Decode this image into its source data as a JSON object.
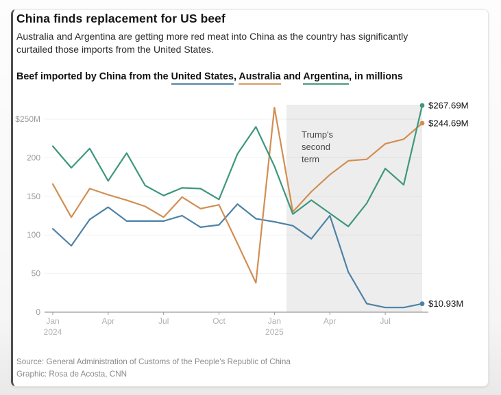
{
  "page": {
    "headline": "China finds replacement for US beef",
    "subhead": "Australia and Argentina are getting more red meat into China as the country has significantly curtailed those imports from the United States.",
    "chart_title": {
      "prefix": "Beef imported by China from the ",
      "series_us": "United States",
      "sep1": ", ",
      "series_au": "Australia",
      "sep2": " and ",
      "series_ar": "Argentina",
      "suffix": ", in millions"
    },
    "source_line1": "Source: General Administration of Customs of the People's Republic of China",
    "source_line2": "Graphic: Rosa de Acosta, CNN"
  },
  "chart_data": {
    "type": "line",
    "title": "Beef imported by China from the United States, Australia and Argentina, in millions",
    "unit": "USD millions",
    "ylim": [
      0,
      280
    ],
    "grid": "horizontal",
    "x": [
      "Jan 2024",
      "Feb 2024",
      "Mar 2024",
      "Apr 2024",
      "May 2024",
      "Jun 2024",
      "Jul 2024",
      "Aug 2024",
      "Sep 2024",
      "Oct 2024",
      "Nov 2024",
      "Dec 2024",
      "Jan 2025",
      "Feb 2025",
      "Mar 2025",
      "Apr 2025",
      "May 2025",
      "Jun 2025",
      "Jul 2025",
      "Aug 2025",
      "Sep 2025"
    ],
    "x_ticks": [
      {
        "index": 0,
        "line1": "Jan",
        "line2": "2024"
      },
      {
        "index": 3,
        "line1": "Apr"
      },
      {
        "index": 6,
        "line1": "Jul"
      },
      {
        "index": 9,
        "line1": "Oct"
      },
      {
        "index": 12,
        "line1": "Jan",
        "line2": "2025"
      },
      {
        "index": 15,
        "line1": "Apr"
      },
      {
        "index": 18,
        "line1": "Jul"
      }
    ],
    "y_ticks": [
      {
        "value": 250,
        "label": "$250M"
      },
      {
        "value": 200,
        "label": "200"
      },
      {
        "value": 150,
        "label": "150"
      },
      {
        "value": 100,
        "label": "100"
      },
      {
        "value": 50,
        "label": "50"
      },
      {
        "value": 0,
        "label": "0"
      }
    ],
    "series": [
      {
        "name": "United States",
        "color": "#4d82a6",
        "end_label": "$10.93M",
        "values": [
          108,
          86,
          120,
          136,
          118,
          118,
          118,
          125,
          110,
          113,
          140,
          121,
          117,
          112,
          95,
          125,
          52,
          11,
          6,
          6,
          10.93
        ]
      },
      {
        "name": "Australia",
        "color": "#d28e52",
        "end_label": "$244.69M",
        "values": [
          166,
          123,
          160,
          152,
          145,
          137,
          123,
          149,
          134,
          139,
          89,
          38,
          265,
          130,
          156,
          178,
          196,
          198,
          218,
          224,
          244.69
        ]
      },
      {
        "name": "Argentina",
        "color": "#3d977d",
        "end_label": "$267.69M",
        "values": [
          215,
          187,
          212,
          170,
          206,
          164,
          151,
          161,
          160,
          146,
          205,
          240,
          189,
          127,
          145,
          128,
          111,
          141,
          186,
          165,
          267.69
        ]
      }
    ],
    "annotation": {
      "label": "Trump's second term",
      "label_lines": [
        "Trump's",
        "second",
        "term"
      ],
      "region_start_index": 12.65,
      "region_end_index": 20,
      "region_color": "#ededed"
    }
  }
}
